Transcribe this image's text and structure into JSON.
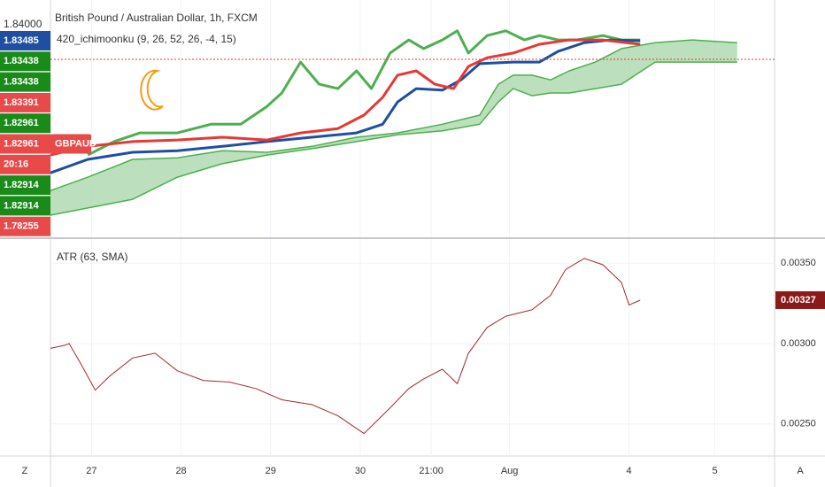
{
  "chart_data": [
    {
      "type": "line",
      "title": "British Pound / Australian Dollar, 1h, FXCM",
      "subtitle": "420_ichimoonku (9, 26, 52, 26, -4, 15)",
      "axis_top_label": "1.84000",
      "symbol_tag": "GBPAUD",
      "price_labels": [
        {
          "label": "1.83485",
          "color": "#1e4fa0"
        },
        {
          "label": "1.83438",
          "color": "#1a8a1a"
        },
        {
          "label": "1.83438",
          "color": "#1a8a1a"
        },
        {
          "label": "1.83391",
          "color": "#e84a4a"
        },
        {
          "label": "1.82961",
          "color": "#1a8a1a"
        },
        {
          "label": "1.82961",
          "color": "#e84a4a"
        },
        {
          "label": "20:16",
          "color": "#e84a4a"
        },
        {
          "label": "1.82914",
          "color": "#1a8a1a"
        },
        {
          "label": "1.82914",
          "color": "#1a8a1a"
        },
        {
          "label": "1.78255",
          "color": "#e84a4a"
        }
      ],
      "price_line": 1.83438,
      "price_line_color": "#e53935",
      "xlim": [
        0,
        194
      ],
      "ylim": [
        1.82988,
        1.83588
      ],
      "grid": true,
      "cloud_color": "#a5d6a7",
      "series": [
        {
          "color": "#4caf50",
          "x": [
            10,
            17,
            24,
            34,
            43,
            51,
            58,
            62,
            67,
            72,
            77,
            82,
            86,
            91,
            96,
            100,
            105,
            109,
            112,
            117,
            122,
            127,
            131,
            136,
            141,
            148,
            153,
            158
          ],
          "values": [
            1.83196,
            1.8323,
            1.83252,
            1.83252,
            1.83274,
            1.83274,
            1.83319,
            1.83353,
            1.83431,
            1.83375,
            1.83364,
            1.83409,
            1.83364,
            1.83454,
            1.83487,
            1.83465,
            1.83487,
            1.8351,
            1.83454,
            1.83498,
            1.8351,
            1.83487,
            1.83498,
            1.83487,
            1.83487,
            1.83498,
            1.83487,
            1.83487
          ]
        },
        {
          "color": "#e53935",
          "x": [
            0,
            10,
            22,
            34,
            46,
            58,
            67,
            77,
            84,
            89,
            93,
            98,
            103,
            108,
            112,
            117,
            124,
            131,
            139,
            148,
            158
          ],
          "values": [
            1.83196,
            1.83218,
            1.8323,
            1.83234,
            1.83241,
            1.83234,
            1.83252,
            1.83263,
            1.83297,
            1.83342,
            1.83398,
            1.83409,
            1.83375,
            1.83364,
            1.8342,
            1.83442,
            1.83454,
            1.83476,
            1.83487,
            1.83487,
            1.83476
          ]
        },
        {
          "color": "#1e4fa0",
          "x": [
            0,
            10,
            22,
            34,
            46,
            58,
            70,
            82,
            89,
            93,
            98,
            105,
            110,
            115,
            124,
            131,
            136,
            143,
            150,
            158
          ],
          "values": [
            1.83151,
            1.83185,
            1.83203,
            1.83207,
            1.83218,
            1.8323,
            1.83241,
            1.83252,
            1.83274,
            1.8333,
            1.83364,
            1.8336,
            1.83386,
            1.83427,
            1.83431,
            1.83431,
            1.83458,
            1.8348,
            1.83487,
            1.83485
          ]
        },
        {
          "color": "#4caf50",
          "x": [
            0,
            10,
            22,
            34,
            46,
            58,
            70,
            82,
            93,
            105,
            115,
            120,
            124,
            129,
            134,
            139,
            146,
            153,
            162,
            172,
            184
          ],
          "values": [
            1.83106,
            1.8314,
            1.83185,
            1.83189,
            1.83207,
            1.83203,
            1.83218,
            1.83241,
            1.83252,
            1.83274,
            1.83297,
            1.83375,
            1.83398,
            1.83398,
            1.83386,
            1.83409,
            1.83431,
            1.83465,
            1.8348,
            1.83487,
            1.8348
          ]
        },
        {
          "color": "#4caf50",
          "x": [
            0,
            10,
            22,
            34,
            46,
            58,
            70,
            82,
            93,
            105,
            115,
            120,
            124,
            129,
            134,
            139,
            146,
            153,
            162,
            172,
            184
          ],
          "values": [
            1.83044,
            1.83062,
            1.83084,
            1.8314,
            1.83174,
            1.83196,
            1.83212,
            1.8323,
            1.83247,
            1.83257,
            1.83274,
            1.8333,
            1.83364,
            1.83346,
            1.83353,
            1.83353,
            1.83364,
            1.83375,
            1.83431,
            1.83431,
            1.83431
          ]
        }
      ]
    },
    {
      "type": "line",
      "title": "ATR (63, SMA)",
      "color": "#a52a2a",
      "last_label_color": "#8b1a1a",
      "xlim": [
        0,
        194
      ],
      "ylim": [
        0.0023,
        0.00365
      ],
      "yticks": [
        {
          "value": 0.0035,
          "label": "0.00350"
        },
        {
          "value": 0.003,
          "label": "0.00300"
        },
        {
          "value": 0.0025,
          "label": "0.00250"
        }
      ],
      "xticks": [
        {
          "value": 11,
          "label": "27"
        },
        {
          "value": 35,
          "label": "28"
        },
        {
          "value": 59,
          "label": "29"
        },
        {
          "value": 83,
          "label": "30"
        },
        {
          "value": 102,
          "label": "21:00"
        },
        {
          "value": 123,
          "label": "Aug"
        },
        {
          "value": 155,
          "label": "4"
        },
        {
          "value": 178,
          "label": "5"
        }
      ],
      "grid": true,
      "x": [
        0,
        4,
        5,
        8,
        12,
        16,
        22,
        28,
        34,
        41,
        48,
        55,
        62,
        70,
        77,
        84,
        91,
        96,
        100,
        105,
        109,
        112,
        117,
        122,
        129,
        134,
        138,
        143,
        148,
        153,
        155,
        158
      ],
      "values": [
        0.00297,
        0.00299,
        0.003,
        0.00288,
        0.00271,
        0.0028,
        0.00291,
        0.00294,
        0.00283,
        0.00277,
        0.00276,
        0.00272,
        0.00265,
        0.00262,
        0.00255,
        0.00244,
        0.0026,
        0.00272,
        0.00278,
        0.00284,
        0.00275,
        0.00294,
        0.0031,
        0.00317,
        0.00321,
        0.0033,
        0.00346,
        0.00353,
        0.00349,
        0.00338,
        0.00324,
        0.00327
      ],
      "last_label": {
        "value": 0.00327,
        "label": "0.00327"
      },
      "corner_left": "Z",
      "corner_right": "A"
    }
  ]
}
